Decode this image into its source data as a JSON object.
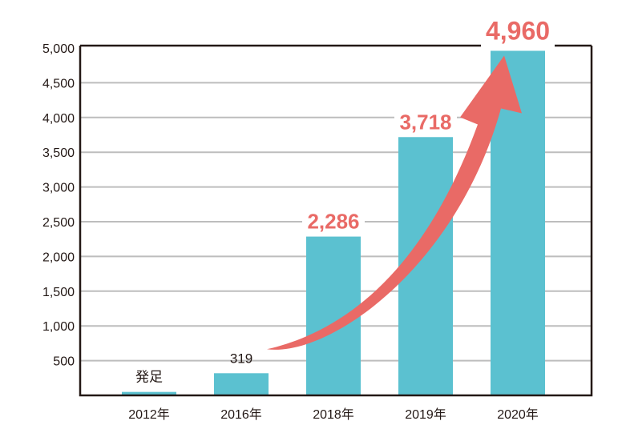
{
  "chart_data": {
    "type": "bar",
    "categories": [
      "2012年",
      "2016年",
      "2018年",
      "2019年",
      "2020年"
    ],
    "values": [
      50,
      319,
      2286,
      3718,
      4960
    ],
    "data_labels": [
      "発足",
      "319",
      "2,286",
      "3,718",
      "4,960"
    ],
    "y_ticks": [
      {
        "value": 500,
        "label": "500"
      },
      {
        "value": 1000,
        "label": "1,000"
      },
      {
        "value": 1500,
        "label": "1,500"
      },
      {
        "value": 2000,
        "label": "2,000"
      },
      {
        "value": 2500,
        "label": "2,500"
      },
      {
        "value": 3000,
        "label": "3,000"
      },
      {
        "value": 3500,
        "label": "3,500"
      },
      {
        "value": 4000,
        "label": "4,000"
      },
      {
        "value": 4500,
        "label": "4,500"
      },
      {
        "value": 5000,
        "label": "5,000"
      }
    ],
    "ylim": [
      0,
      5000
    ],
    "grid": true,
    "colors": {
      "bar": "#5bc1d0",
      "growth_arrow": "#e96a66",
      "highlight_label": "#e96a66",
      "text": "#231815",
      "grid": "#bdbdbd",
      "axis": "#231815"
    },
    "annotations": [
      {
        "type": "growth-arrow",
        "from_category": "2016年",
        "to_category": "2020年"
      }
    ]
  }
}
